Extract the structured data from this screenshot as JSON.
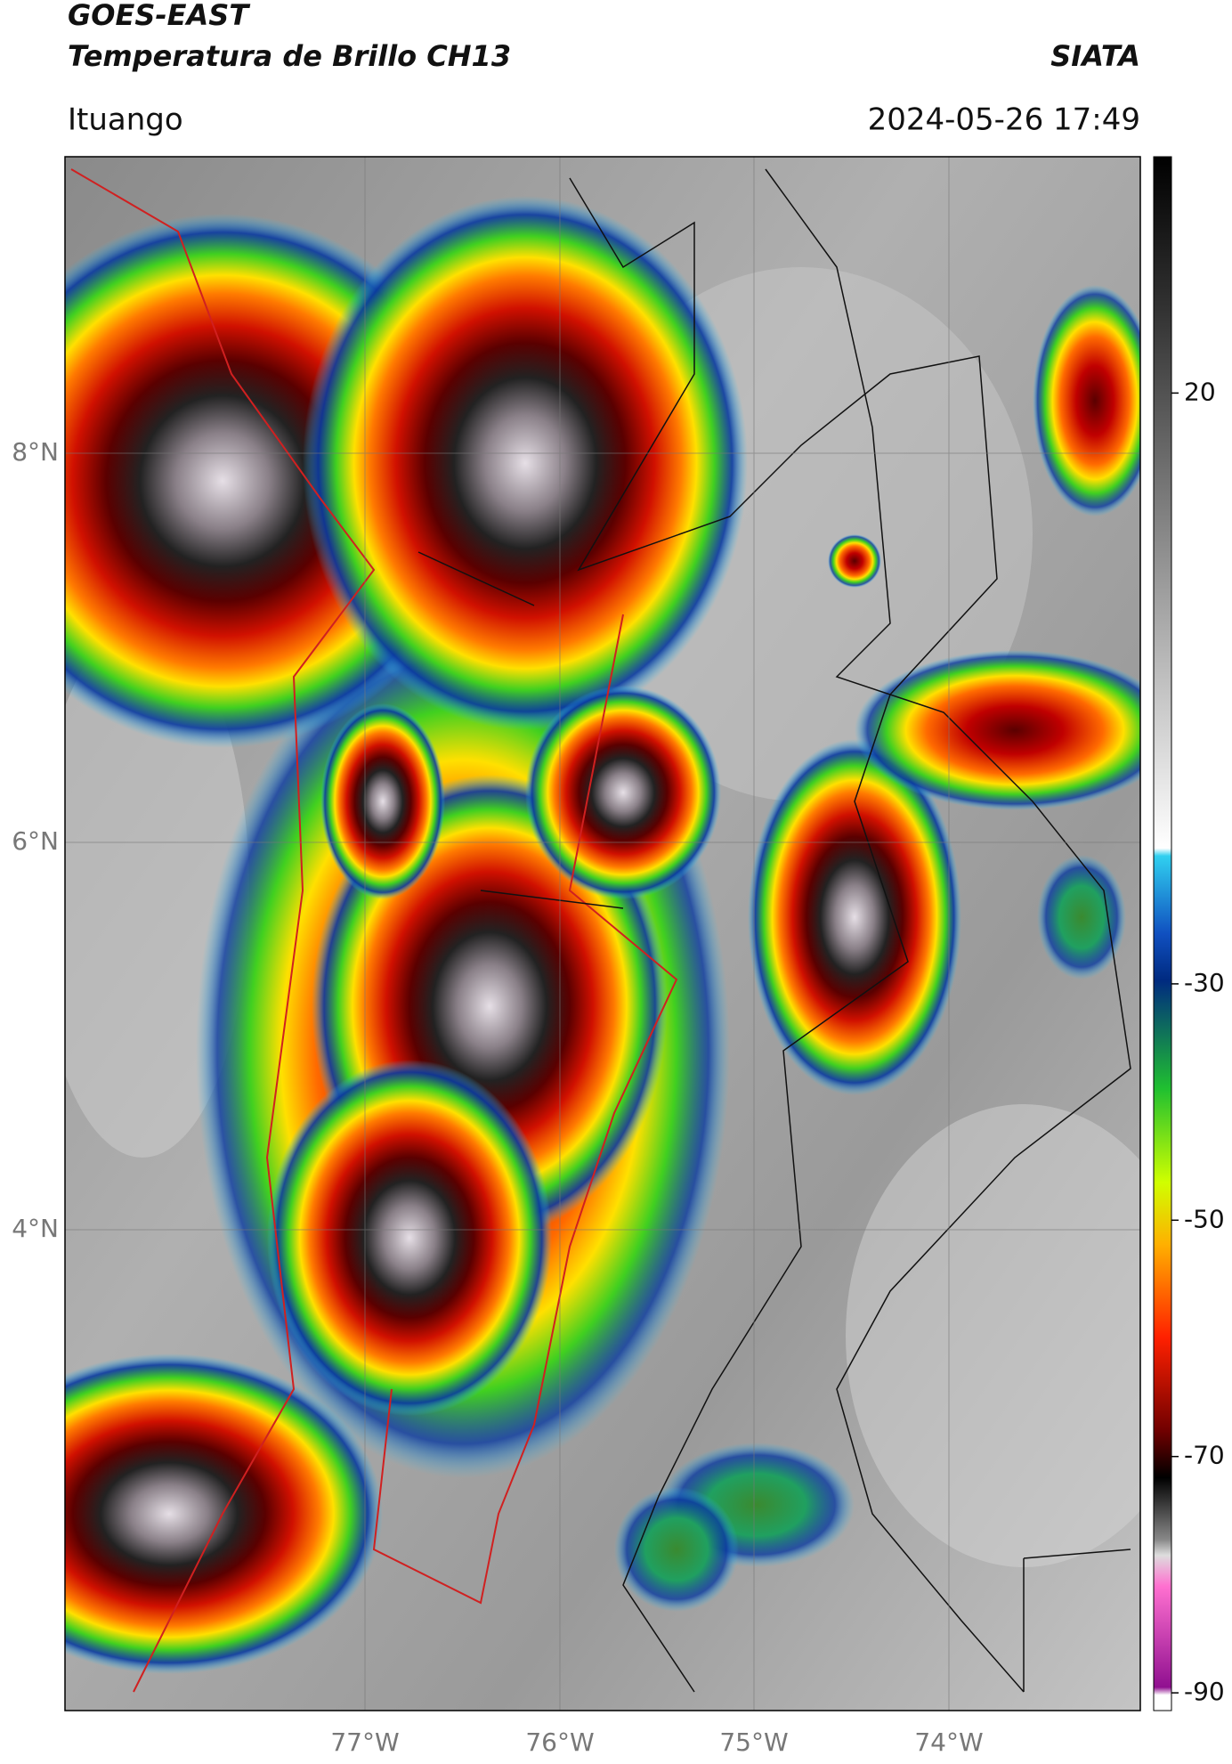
{
  "header": {
    "satellite": "GOES-EAST",
    "product": "Temperatura de Brillo CH13",
    "agency": "SIATA",
    "region": "Ituango",
    "datetime": "2024-05-26 17:49"
  },
  "map": {
    "lat_labels": [
      "8°N",
      "6°N",
      "4°N"
    ],
    "lon_labels": [
      "77°W",
      "76°W",
      "75°W",
      "74°W"
    ]
  },
  "colorbar": {
    "lim": [
      -91.5,
      40
    ],
    "ticks": [
      20,
      -30,
      -50,
      -70,
      -90
    ]
  }
}
